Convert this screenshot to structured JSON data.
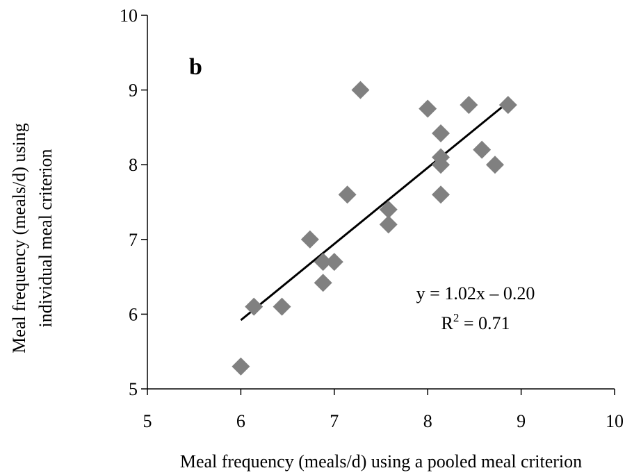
{
  "chart_data": {
    "type": "scatter",
    "panel_label": "b",
    "xlabel": "Meal frequency (meals/d) using a pooled meal criterion",
    "ylabel_line1": "Meal frequency (meals/d) using",
    "ylabel_line2": "individual meal criterion",
    "xlim": [
      5,
      10
    ],
    "ylim": [
      5,
      10
    ],
    "xticks": [
      5,
      6,
      7,
      8,
      9,
      10
    ],
    "yticks": [
      5,
      6,
      7,
      8,
      9,
      10
    ],
    "marker": "diamond",
    "marker_color": "#808080",
    "line_color": "#000000",
    "points": [
      {
        "x": 6.0,
        "y": 5.3
      },
      {
        "x": 6.14,
        "y": 6.1
      },
      {
        "x": 6.44,
        "y": 6.1
      },
      {
        "x": 6.74,
        "y": 7.0
      },
      {
        "x": 6.88,
        "y": 6.7
      },
      {
        "x": 6.88,
        "y": 6.42
      },
      {
        "x": 7.0,
        "y": 6.7
      },
      {
        "x": 7.14,
        "y": 7.6
      },
      {
        "x": 7.28,
        "y": 9.0
      },
      {
        "x": 7.58,
        "y": 7.4
      },
      {
        "x": 7.58,
        "y": 7.2
      },
      {
        "x": 8.0,
        "y": 8.75
      },
      {
        "x": 8.14,
        "y": 8.42
      },
      {
        "x": 8.14,
        "y": 8.1
      },
      {
        "x": 8.14,
        "y": 8.0
      },
      {
        "x": 8.14,
        "y": 7.6
      },
      {
        "x": 8.44,
        "y": 8.8
      },
      {
        "x": 8.58,
        "y": 8.2
      },
      {
        "x": 8.72,
        "y": 8.0
      },
      {
        "x": 8.86,
        "y": 8.8
      }
    ],
    "trendline": {
      "slope": 1.02,
      "intercept": -0.2,
      "x_start": 6.0,
      "x_end": 8.86
    },
    "equation_text": "y = 1.02x – 0.20",
    "r2_prefix": "R",
    "r2_sup": "2",
    "r2_suffix": " = 0.71"
  }
}
